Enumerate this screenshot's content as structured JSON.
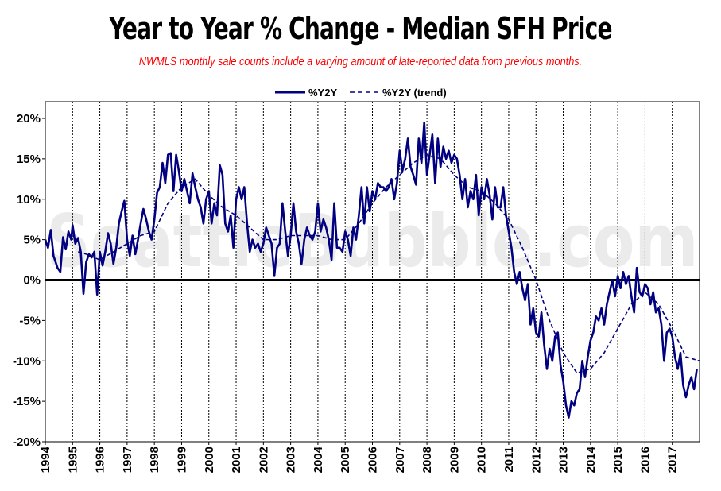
{
  "chart_data": {
    "type": "line",
    "title": "Year to Year % Change - Median SFH Price",
    "subtitle": "NWMLS monthly sale counts include a varying amount of late-reported  data  from previous months.",
    "xlabel": "",
    "ylabel": "",
    "x_ticks": [
      "1994",
      "1995",
      "1996",
      "1997",
      "1998",
      "1999",
      "2000",
      "2001",
      "2002",
      "2003",
      "2004",
      "2005",
      "2006",
      "2007",
      "2008",
      "2009",
      "2010",
      "2011",
      "2012",
      "2013",
      "2014",
      "2015",
      "2016",
      "2017"
    ],
    "y_ticks": [
      "20%",
      "15%",
      "10%",
      "5%",
      "0%",
      "-5%",
      "-10%",
      "-15%",
      "-20%"
    ],
    "xlim": [
      1994.0,
      2018.0
    ],
    "ylim": [
      -20,
      22
    ],
    "grid": "vertical",
    "legend": "top-center",
    "watermark": "SeattleBubble.com",
    "series": [
      {
        "name": "%Y2Y",
        "style": "solid",
        "color": "#000080",
        "points": [
          [
            1994.0,
            5.0
          ],
          [
            1994.1,
            4.0
          ],
          [
            1994.2,
            6.2
          ],
          [
            1994.3,
            3.0
          ],
          [
            1994.45,
            1.5
          ],
          [
            1994.55,
            1.0
          ],
          [
            1994.65,
            5.3
          ],
          [
            1994.75,
            3.8
          ],
          [
            1994.85,
            6.0
          ],
          [
            1994.95,
            5.0
          ],
          [
            1995.0,
            6.8
          ],
          [
            1995.1,
            4.5
          ],
          [
            1995.2,
            5.2
          ],
          [
            1995.3,
            3.5
          ],
          [
            1995.4,
            -1.7
          ],
          [
            1995.5,
            2.2
          ],
          [
            1995.6,
            3.2
          ],
          [
            1995.7,
            2.8
          ],
          [
            1995.8,
            3.5
          ],
          [
            1995.9,
            -1.8
          ],
          [
            1996.0,
            3.5
          ],
          [
            1996.1,
            1.8
          ],
          [
            1996.2,
            3.5
          ],
          [
            1996.3,
            5.8
          ],
          [
            1996.4,
            4.5
          ],
          [
            1996.5,
            2.0
          ],
          [
            1996.6,
            4.0
          ],
          [
            1996.7,
            7.0
          ],
          [
            1996.8,
            8.5
          ],
          [
            1996.9,
            9.8
          ],
          [
            1997.0,
            5.0
          ],
          [
            1997.1,
            3.0
          ],
          [
            1997.2,
            5.5
          ],
          [
            1997.3,
            3.2
          ],
          [
            1997.4,
            5.0
          ],
          [
            1997.5,
            7.0
          ],
          [
            1997.6,
            8.8
          ],
          [
            1997.7,
            7.5
          ],
          [
            1997.8,
            6.0
          ],
          [
            1997.9,
            5.0
          ],
          [
            1998.0,
            7.5
          ],
          [
            1998.1,
            10.8
          ],
          [
            1998.2,
            11.5
          ],
          [
            1998.3,
            14.5
          ],
          [
            1998.4,
            12.0
          ],
          [
            1998.5,
            15.5
          ],
          [
            1998.6,
            15.7
          ],
          [
            1998.7,
            11.0
          ],
          [
            1998.8,
            15.5
          ],
          [
            1998.9,
            13.5
          ],
          [
            1999.0,
            11.0
          ],
          [
            1999.1,
            12.5
          ],
          [
            1999.2,
            11.0
          ],
          [
            1999.3,
            9.5
          ],
          [
            1999.4,
            13.2
          ],
          [
            1999.5,
            11.5
          ],
          [
            1999.6,
            10.0
          ],
          [
            1999.7,
            9.0
          ],
          [
            1999.8,
            7.0
          ],
          [
            1999.9,
            10.0
          ],
          [
            2000.0,
            11.0
          ],
          [
            2000.1,
            7.0
          ],
          [
            2000.2,
            9.5
          ],
          [
            2000.3,
            8.0
          ],
          [
            2000.4,
            14.2
          ],
          [
            2000.5,
            13.0
          ],
          [
            2000.6,
            7.0
          ],
          [
            2000.7,
            6.0
          ],
          [
            2000.8,
            8.0
          ],
          [
            2000.9,
            4.0
          ],
          [
            2001.0,
            10.0
          ],
          [
            2001.1,
            11.5
          ],
          [
            2001.2,
            10.0
          ],
          [
            2001.3,
            11.5
          ],
          [
            2001.4,
            7.0
          ],
          [
            2001.5,
            3.5
          ],
          [
            2001.6,
            5.0
          ],
          [
            2001.7,
            4.0
          ],
          [
            2001.8,
            4.5
          ],
          [
            2001.9,
            3.5
          ],
          [
            2002.0,
            4.5
          ],
          [
            2002.1,
            6.5
          ],
          [
            2002.2,
            5.5
          ],
          [
            2002.3,
            4.5
          ],
          [
            2002.4,
            0.5
          ],
          [
            2002.5,
            4.0
          ],
          [
            2002.6,
            4.5
          ],
          [
            2002.7,
            9.5
          ],
          [
            2002.8,
            6.0
          ],
          [
            2002.9,
            3.0
          ],
          [
            2003.0,
            5.5
          ],
          [
            2003.1,
            9.5
          ],
          [
            2003.2,
            6.0
          ],
          [
            2003.3,
            4.5
          ],
          [
            2003.4,
            2.0
          ],
          [
            2003.5,
            5.0
          ],
          [
            2003.6,
            6.5
          ],
          [
            2003.7,
            5.5
          ],
          [
            2003.8,
            5.0
          ],
          [
            2003.9,
            6.0
          ],
          [
            2004.0,
            9.5
          ],
          [
            2004.1,
            6.0
          ],
          [
            2004.2,
            7.5
          ],
          [
            2004.3,
            6.5
          ],
          [
            2004.4,
            5.0
          ],
          [
            2004.5,
            2.5
          ],
          [
            2004.6,
            9.5
          ],
          [
            2004.7,
            4.0
          ],
          [
            2004.8,
            4.0
          ],
          [
            2004.9,
            3.5
          ],
          [
            2005.0,
            6.0
          ],
          [
            2005.1,
            5.0
          ],
          [
            2005.2,
            3.0
          ],
          [
            2005.3,
            6.5
          ],
          [
            2005.4,
            5.0
          ],
          [
            2005.5,
            8.0
          ],
          [
            2005.6,
            11.5
          ],
          [
            2005.7,
            7.0
          ],
          [
            2005.8,
            11.5
          ],
          [
            2005.9,
            8.5
          ],
          [
            2006.0,
            11.0
          ],
          [
            2006.1,
            10.0
          ],
          [
            2006.2,
            12.0
          ],
          [
            2006.3,
            11.5
          ],
          [
            2006.4,
            11.5
          ],
          [
            2006.5,
            11.0
          ],
          [
            2006.6,
            11.5
          ],
          [
            2006.7,
            12.5
          ],
          [
            2006.8,
            10.0
          ],
          [
            2006.9,
            12.0
          ],
          [
            2007.0,
            16.0
          ],
          [
            2007.1,
            13.5
          ],
          [
            2007.2,
            15.0
          ],
          [
            2007.3,
            17.5
          ],
          [
            2007.4,
            14.0
          ],
          [
            2007.5,
            13.0
          ],
          [
            2007.6,
            11.8
          ],
          [
            2007.7,
            17.5
          ],
          [
            2007.8,
            14.5
          ],
          [
            2007.9,
            19.5
          ],
          [
            2008.0,
            13.0
          ],
          [
            2008.1,
            15.5
          ],
          [
            2008.2,
            18.0
          ],
          [
            2008.3,
            12.0
          ],
          [
            2008.4,
            17.5
          ],
          [
            2008.5,
            14.0
          ],
          [
            2008.6,
            16.5
          ],
          [
            2008.7,
            15.0
          ],
          [
            2008.8,
            16.0
          ],
          [
            2008.9,
            14.5
          ],
          [
            2009.0,
            15.5
          ],
          [
            2009.1,
            15.0
          ],
          [
            2009.2,
            13.0
          ],
          [
            2009.3,
            10.0
          ],
          [
            2009.4,
            12.5
          ],
          [
            2009.5,
            9.0
          ],
          [
            2009.6,
            11.0
          ],
          [
            2009.7,
            10.0
          ],
          [
            2009.8,
            13.0
          ],
          [
            2009.9,
            8.0
          ],
          [
            2010.0,
            11.5
          ],
          [
            2010.1,
            10.0
          ],
          [
            2010.2,
            12.5
          ],
          [
            2010.3,
            10.5
          ],
          [
            2010.4,
            7.5
          ],
          [
            2010.5,
            11.5
          ],
          [
            2010.6,
            9.0
          ],
          [
            2010.7,
            9.0
          ],
          [
            2010.8,
            11.5
          ],
          [
            2010.9,
            8.0
          ],
          [
            2011.0,
            6.0
          ],
          [
            2011.1,
            4.0
          ],
          [
            2011.2,
            1.0
          ],
          [
            2011.3,
            -0.5
          ],
          [
            2011.4,
            1.0
          ],
          [
            2011.5,
            -1.0
          ],
          [
            2011.6,
            -2.5
          ],
          [
            2011.7,
            -0.5
          ],
          [
            2011.8,
            -5.5
          ],
          [
            2011.9,
            -3.5
          ],
          [
            2012.0,
            -6.5
          ],
          [
            2012.1,
            -7.0
          ],
          [
            2012.2,
            -4.0
          ],
          [
            2012.3,
            -8.0
          ],
          [
            2012.4,
            -11.0
          ],
          [
            2012.5,
            -8.5
          ],
          [
            2012.6,
            -10.0
          ],
          [
            2012.7,
            -7.0
          ],
          [
            2012.8,
            -6.5
          ],
          [
            2012.9,
            -10.5
          ],
          [
            2013.0,
            -12.5
          ],
          [
            2013.1,
            -15.5
          ],
          [
            2013.2,
            -17.0
          ],
          [
            2013.3,
            -15.0
          ],
          [
            2013.4,
            -15.5
          ],
          [
            2013.5,
            -14.0
          ],
          [
            2013.6,
            -13.5
          ],
          [
            2013.7,
            -10.0
          ],
          [
            2013.8,
            -12.0
          ],
          [
            2013.9,
            -9.5
          ],
          [
            2014.0,
            -7.5
          ],
          [
            2014.1,
            -6.5
          ],
          [
            2014.2,
            -4.5
          ],
          [
            2014.3,
            -5.0
          ],
          [
            2014.4,
            -3.5
          ],
          [
            2014.5,
            -5.5
          ],
          [
            2014.6,
            -3.0
          ],
          [
            2014.7,
            -1.5
          ],
          [
            2014.8,
            0.0
          ],
          [
            2014.9,
            -2.0
          ],
          [
            2015.0,
            0.5
          ],
          [
            2015.1,
            -1.0
          ],
          [
            2015.2,
            1.0
          ],
          [
            2015.3,
            -0.5
          ],
          [
            2015.4,
            0.5
          ],
          [
            2015.5,
            -2.0
          ],
          [
            2015.6,
            -4.0
          ],
          [
            2015.7,
            1.5
          ],
          [
            2015.8,
            -1.5
          ],
          [
            2015.9,
            -2.0
          ],
          [
            2016.0,
            -0.5
          ],
          [
            2016.1,
            -1.0
          ],
          [
            2016.2,
            -3.0
          ],
          [
            2016.3,
            -1.5
          ],
          [
            2016.4,
            -4.0
          ],
          [
            2016.5,
            -3.5
          ],
          [
            2016.6,
            -5.5
          ],
          [
            2016.7,
            -10.0
          ],
          [
            2016.8,
            -6.5
          ],
          [
            2016.9,
            -6.0
          ],
          [
            2017.0,
            -7.0
          ],
          [
            2017.1,
            -9.5
          ],
          [
            2017.2,
            -11.0
          ],
          [
            2017.3,
            -9.0
          ],
          [
            2017.4,
            -13.0
          ],
          [
            2017.5,
            -14.5
          ],
          [
            2017.6,
            -13.0
          ],
          [
            2017.7,
            -12.0
          ],
          [
            2017.8,
            -13.5
          ],
          [
            2017.9,
            -11.0
          ]
        ]
      },
      {
        "name": "%Y2Y (trend)",
        "style": "dashed",
        "color": "#000080",
        "points": [
          [
            1995.2,
            3.5
          ],
          [
            1995.5,
            3.2
          ],
          [
            1996.0,
            2.5
          ],
          [
            1996.5,
            3.5
          ],
          [
            1997.0,
            4.5
          ],
          [
            1997.5,
            5.5
          ],
          [
            1998.0,
            6.0
          ],
          [
            1998.5,
            9.5
          ],
          [
            1999.0,
            11.5
          ],
          [
            1999.5,
            12.5
          ],
          [
            2000.0,
            10.5
          ],
          [
            2000.5,
            9.0
          ],
          [
            2001.0,
            8.0
          ],
          [
            2001.5,
            6.5
          ],
          [
            2002.0,
            5.0
          ],
          [
            2002.5,
            5.0
          ],
          [
            2003.0,
            5.5
          ],
          [
            2003.5,
            5.5
          ],
          [
            2004.0,
            5.5
          ],
          [
            2004.5,
            5.0
          ],
          [
            2005.0,
            5.0
          ],
          [
            2005.5,
            7.0
          ],
          [
            2006.0,
            9.5
          ],
          [
            2006.5,
            11.5
          ],
          [
            2007.0,
            13.0
          ],
          [
            2007.5,
            14.5
          ],
          [
            2008.0,
            15.5
          ],
          [
            2008.5,
            15.0
          ],
          [
            2009.0,
            13.0
          ],
          [
            2009.5,
            11.5
          ],
          [
            2010.0,
            11.0
          ],
          [
            2010.5,
            9.5
          ],
          [
            2011.0,
            7.5
          ],
          [
            2011.5,
            4.0
          ],
          [
            2012.0,
            0.0
          ],
          [
            2012.5,
            -5.0
          ],
          [
            2013.0,
            -9.0
          ],
          [
            2013.5,
            -11.5
          ],
          [
            2014.0,
            -11.0
          ],
          [
            2014.5,
            -9.0
          ],
          [
            2015.0,
            -6.0
          ],
          [
            2015.5,
            -3.0
          ],
          [
            2016.0,
            -1.5
          ],
          [
            2016.5,
            -3.0
          ],
          [
            2017.0,
            -6.0
          ],
          [
            2017.5,
            -9.5
          ],
          [
            2018.0,
            -10.0
          ]
        ]
      }
    ]
  }
}
